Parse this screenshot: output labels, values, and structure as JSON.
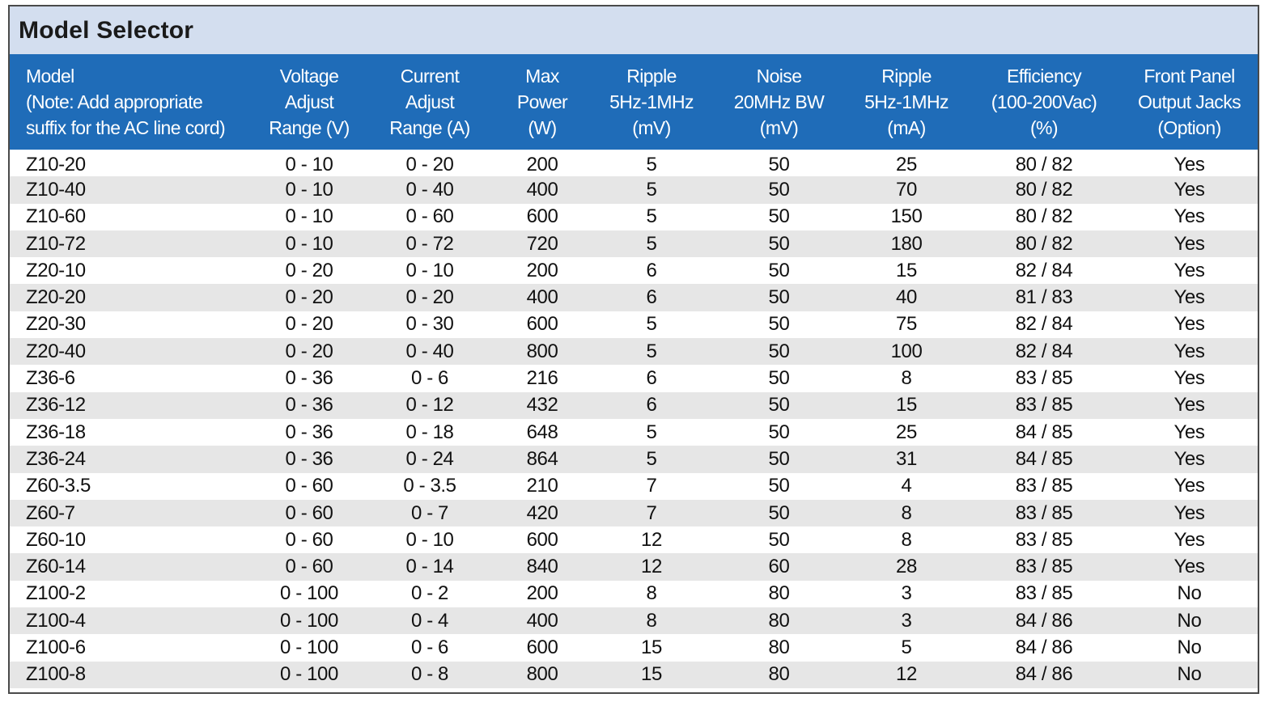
{
  "title": "Model Selector",
  "columns": [
    [
      "Model",
      "(Note: Add appropriate",
      "suffix for the AC line cord)"
    ],
    [
      "Voltage",
      "Adjust",
      "Range (V)"
    ],
    [
      "Current",
      "Adjust",
      "Range (A)"
    ],
    [
      "Max",
      "Power",
      "(W)"
    ],
    [
      "Ripple",
      "5Hz-1MHz",
      "(mV)"
    ],
    [
      "Noise",
      "20MHz BW",
      "(mV)"
    ],
    [
      "Ripple",
      "5Hz-1MHz",
      "(mA)"
    ],
    [
      "Efficiency",
      "(100-200Vac)",
      "(%)"
    ],
    [
      "Front Panel",
      "Output Jacks",
      "(Option)"
    ]
  ],
  "rows": [
    [
      "Z10-20",
      "0 - 10",
      "0 - 20",
      "200",
      "5",
      "50",
      "25",
      "80 / 82",
      "Yes"
    ],
    [
      "Z10-40",
      "0 - 10",
      "0 - 40",
      "400",
      "5",
      "50",
      "70",
      "80 / 82",
      "Yes"
    ],
    [
      "Z10-60",
      "0 - 10",
      "0 - 60",
      "600",
      "5",
      "50",
      "150",
      "80 / 82",
      "Yes"
    ],
    [
      "Z10-72",
      "0 - 10",
      "0 - 72",
      "720",
      "5",
      "50",
      "180",
      "80 / 82",
      "Yes"
    ],
    [
      "Z20-10",
      "0 - 20",
      "0 - 10",
      "200",
      "6",
      "50",
      "15",
      "82 / 84",
      "Yes"
    ],
    [
      "Z20-20",
      "0 - 20",
      "0 - 20",
      "400",
      "6",
      "50",
      "40",
      "81 / 83",
      "Yes"
    ],
    [
      "Z20-30",
      "0 - 20",
      "0 - 30",
      "600",
      "5",
      "50",
      "75",
      "82 / 84",
      "Yes"
    ],
    [
      "Z20-40",
      "0 - 20",
      "0 - 40",
      "800",
      "5",
      "50",
      "100",
      "82 / 84",
      "Yes"
    ],
    [
      "Z36-6",
      "0 - 36",
      "0 - 6",
      "216",
      "6",
      "50",
      "8",
      "83 / 85",
      "Yes"
    ],
    [
      "Z36-12",
      "0 - 36",
      "0 - 12",
      "432",
      "6",
      "50",
      "15",
      "83 / 85",
      "Yes"
    ],
    [
      "Z36-18",
      "0 - 36",
      "0 - 18",
      "648",
      "5",
      "50",
      "25",
      "84 / 85",
      "Yes"
    ],
    [
      "Z36-24",
      "0 - 36",
      "0 - 24",
      "864",
      "5",
      "50",
      "31",
      "84 / 85",
      "Yes"
    ],
    [
      "Z60-3.5",
      "0 - 60",
      "0 - 3.5",
      "210",
      "7",
      "50",
      "4",
      "83 / 85",
      "Yes"
    ],
    [
      "Z60-7",
      "0 - 60",
      "0 - 7",
      "420",
      "7",
      "50",
      "8",
      "83 / 85",
      "Yes"
    ],
    [
      "Z60-10",
      "0 - 60",
      "0 - 10",
      "600",
      "12",
      "50",
      "8",
      "83 / 85",
      "Yes"
    ],
    [
      "Z60-14",
      "0 - 60",
      "0 - 14",
      "840",
      "12",
      "60",
      "28",
      "83 / 85",
      "Yes"
    ],
    [
      "Z100-2",
      "0 - 100",
      "0 - 2",
      "200",
      "8",
      "80",
      "3",
      "83 / 85",
      "No"
    ],
    [
      "Z100-4",
      "0 - 100",
      "0 - 4",
      "400",
      "8",
      "80",
      "3",
      "84 / 86",
      "No"
    ],
    [
      "Z100-6",
      "0 - 100",
      "0 - 6",
      "600",
      "15",
      "80",
      "5",
      "84 / 86",
      "No"
    ],
    [
      "Z100-8",
      "0 - 100",
      "0 - 8",
      "800",
      "15",
      "80",
      "12",
      "84 / 86",
      "No"
    ]
  ]
}
